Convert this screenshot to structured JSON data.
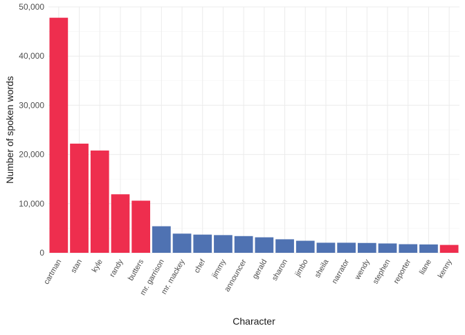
{
  "chart_data": {
    "type": "bar",
    "title": "",
    "xlabel": "Character",
    "ylabel": "Number of spoken words",
    "categories": [
      "cartman",
      "stan",
      "kyle",
      "randy",
      "butters",
      "mr. garrison",
      "mr. mackey",
      "chef",
      "jimmy",
      "announcer",
      "gerald",
      "sharon",
      "jimbo",
      "sheila",
      "narrator",
      "wendy",
      "stephen",
      "reporter",
      "liane",
      "kenny"
    ],
    "values": [
      47800,
      22200,
      20800,
      11900,
      10600,
      5400,
      3900,
      3700,
      3600,
      3400,
      3150,
      2750,
      2450,
      2050,
      2050,
      2000,
      1900,
      1750,
      1700,
      1600
    ],
    "highlight": [
      true,
      true,
      true,
      true,
      true,
      false,
      false,
      false,
      false,
      false,
      false,
      false,
      false,
      false,
      false,
      false,
      false,
      false,
      false,
      true
    ],
    "ylim": [
      0,
      50000
    ],
    "yticks": [
      0,
      10000,
      20000,
      30000,
      40000,
      50000
    ],
    "ytick_labels": [
      "0",
      "10,000",
      "20,000",
      "30,000",
      "40,000",
      "50,000"
    ],
    "grid": true,
    "colors": {
      "highlight": "#EE2E4E",
      "default": "#4F72B2"
    }
  }
}
